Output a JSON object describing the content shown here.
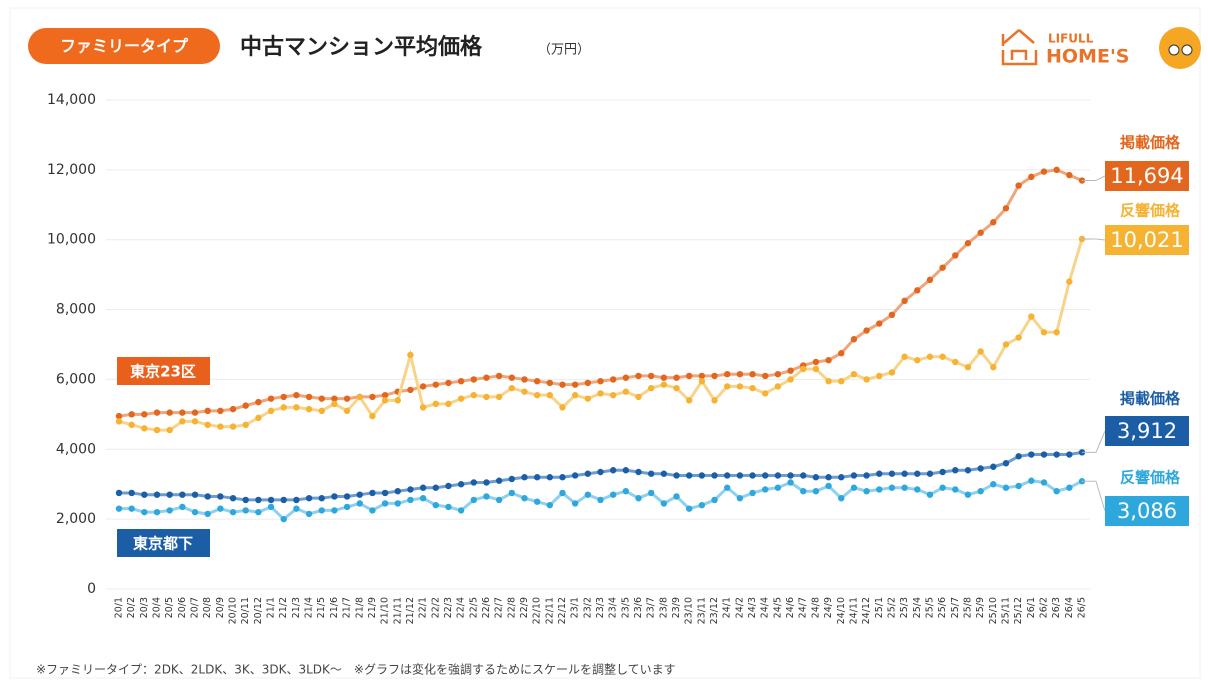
{
  "badge": "ファミリータイプ",
  "logo": [
    "LIFULL",
    "HOME'S"
  ],
  "footnote": "※ファミリータイプ：2DK、2LDK、3K、3DK、3LDK～　※グラフは変化を強調するためにスケールを調整しています",
  "chart_data": {
    "type": "line",
    "title": "中古マンション平均価格",
    "unit": "（万円）",
    "categories": [
      "20/1",
      "20/2",
      "20/3",
      "20/4",
      "20/5",
      "20/6",
      "20/7",
      "20/8",
      "20/9",
      "20/10",
      "20/11",
      "20/12",
      "21/1",
      "21/2",
      "21/3",
      "21/4",
      "21/5",
      "21/6",
      "21/7",
      "21/8",
      "21/9",
      "21/10",
      "21/11",
      "21/12",
      "22/1",
      "22/2",
      "22/3",
      "22/4",
      "22/5",
      "22/6",
      "22/7",
      "22/8",
      "22/9",
      "22/10",
      "22/11",
      "22/12",
      "23/1",
      "23/2",
      "23/3",
      "23/4",
      "23/5",
      "23/6",
      "23/7",
      "23/8",
      "23/9",
      "23/10",
      "23/11",
      "23/12",
      "24/1",
      "24/2",
      "24/3",
      "24/4",
      "24/5",
      "24/6",
      "24/7",
      "24/8",
      "24/9",
      "24/10",
      "24/11",
      "24/12",
      "25/1",
      "25/2",
      "25/3",
      "25/4",
      "25/5",
      "25/6",
      "25/7",
      "25/8",
      "25/9",
      "25/10",
      "25/11",
      "25/12",
      "26/1",
      "26/2",
      "26/3",
      "26/4",
      "26/5"
    ],
    "group_labels": [
      "東京23区",
      "東京都下"
    ],
    "series": [
      {
        "name": "掲載価格",
        "color": "#e2661e",
        "line_color": "#f0a57a",
        "values": [
          4950,
          5000,
          5000,
          5050,
          5050,
          5050,
          5050,
          5100,
          5100,
          5150,
          5250,
          5350,
          5450,
          5500,
          5550,
          5500,
          5450,
          5450,
          5450,
          5500,
          5500,
          5550,
          5650,
          5700,
          5800,
          5850,
          5900,
          5950,
          6000,
          6050,
          6100,
          6050,
          6000,
          5950,
          5900,
          5850,
          5850,
          5900,
          5950,
          6000,
          6050,
          6100,
          6100,
          6050,
          6050,
          6100,
          6100,
          6100,
          6150,
          6150,
          6150,
          6100,
          6150,
          6250,
          6400,
          6500,
          6550,
          6750,
          7150,
          7400,
          7600,
          7850,
          8250,
          8550,
          8850,
          9200,
          9550,
          9900,
          10200,
          10500,
          10900,
          11550,
          11800,
          11950,
          12000,
          11850,
          11694
        ],
        "value_labels": [
          null,
          null,
          null,
          null,
          null,
          null,
          null,
          null,
          null,
          null,
          null,
          null,
          null,
          null,
          null,
          null,
          null,
          null,
          null,
          null,
          null,
          null,
          null,
          null,
          null,
          null,
          null,
          null,
          null,
          null,
          null,
          null,
          null,
          null,
          null,
          null,
          null,
          null,
          null,
          null,
          null,
          null,
          null,
          null,
          null,
          null,
          null,
          null,
          null,
          null,
          null,
          null,
          null,
          null,
          null,
          null,
          null,
          null,
          null,
          null,
          null,
          null,
          null,
          null,
          null,
          null,
          null,
          null,
          null,
          null,
          null,
          null,
          null,
          null,
          null,
          null,
          "11,694"
        ]
      },
      {
        "name": "反響価格",
        "color": "#f5b233",
        "line_color": "#f8d38a",
        "values": [
          4800,
          4700,
          4600,
          4550,
          4550,
          4800,
          4800,
          4700,
          4650,
          4650,
          4700,
          4900,
          5100,
          5200,
          5200,
          5150,
          5100,
          5300,
          5100,
          5500,
          4950,
          5400,
          5400,
          6700,
          5200,
          5300,
          5300,
          5450,
          5550,
          5500,
          5500,
          5750,
          5650,
          5550,
          5550,
          5200,
          5550,
          5450,
          5600,
          5550,
          5650,
          5500,
          5750,
          5850,
          5750,
          5400,
          5950,
          5400,
          5800,
          5800,
          5750,
          5600,
          5800,
          6000,
          6300,
          6300,
          5950,
          5950,
          6150,
          6000,
          6100,
          6200,
          6650,
          6550,
          6650,
          6650,
          6500,
          6350,
          6800,
          6350,
          7000,
          7200,
          7800,
          7350,
          7350,
          8800,
          10021
        ],
        "value_labels": [
          null,
          null,
          null,
          null,
          null,
          null,
          null,
          null,
          null,
          null,
          null,
          null,
          null,
          null,
          null,
          null,
          null,
          null,
          null,
          null,
          null,
          null,
          null,
          null,
          null,
          null,
          null,
          null,
          null,
          null,
          null,
          null,
          null,
          null,
          null,
          null,
          null,
          null,
          null,
          null,
          null,
          null,
          null,
          null,
          null,
          null,
          null,
          null,
          null,
          null,
          null,
          null,
          null,
          null,
          null,
          null,
          null,
          null,
          null,
          null,
          null,
          null,
          null,
          null,
          null,
          null,
          null,
          null,
          null,
          null,
          null,
          null,
          null,
          null,
          null,
          null,
          "10,021"
        ]
      },
      {
        "name": "掲載価格",
        "color": "#1c5ea6",
        "line_color": "#6f9ccf",
        "values": [
          2750,
          2750,
          2700,
          2700,
          2700,
          2700,
          2700,
          2650,
          2650,
          2600,
          2550,
          2550,
          2550,
          2550,
          2550,
          2600,
          2600,
          2650,
          2650,
          2700,
          2750,
          2750,
          2800,
          2850,
          2900,
          2900,
          2950,
          3000,
          3050,
          3050,
          3100,
          3150,
          3200,
          3200,
          3200,
          3200,
          3250,
          3300,
          3350,
          3400,
          3400,
          3350,
          3300,
          3300,
          3250,
          3250,
          3250,
          3250,
          3250,
          3250,
          3250,
          3250,
          3250,
          3250,
          3250,
          3200,
          3200,
          3200,
          3250,
          3250,
          3300,
          3300,
          3300,
          3300,
          3300,
          3350,
          3400,
          3400,
          3450,
          3500,
          3600,
          3800,
          3850,
          3850,
          3850,
          3850,
          3912
        ],
        "value_labels": [
          null,
          null,
          null,
          null,
          null,
          null,
          null,
          null,
          null,
          null,
          null,
          null,
          null,
          null,
          null,
          null,
          null,
          null,
          null,
          null,
          null,
          null,
          null,
          null,
          null,
          null,
          null,
          null,
          null,
          null,
          null,
          null,
          null,
          null,
          null,
          null,
          null,
          null,
          null,
          null,
          null,
          null,
          null,
          null,
          null,
          null,
          null,
          null,
          null,
          null,
          null,
          null,
          null,
          null,
          null,
          null,
          null,
          null,
          null,
          null,
          null,
          null,
          null,
          null,
          null,
          null,
          null,
          null,
          null,
          null,
          null,
          null,
          null,
          null,
          null,
          null,
          "3,912"
        ]
      },
      {
        "name": "反響価格",
        "color": "#2ea8dc",
        "line_color": "#8fd0ee",
        "values": [
          2300,
          2300,
          2200,
          2200,
          2250,
          2350,
          2200,
          2150,
          2300,
          2200,
          2250,
          2200,
          2350,
          2000,
          2300,
          2150,
          2250,
          2250,
          2350,
          2450,
          2250,
          2450,
          2450,
          2550,
          2600,
          2400,
          2350,
          2250,
          2550,
          2650,
          2550,
          2750,
          2600,
          2500,
          2400,
          2750,
          2450,
          2700,
          2550,
          2700,
          2800,
          2600,
          2750,
          2450,
          2650,
          2300,
          2400,
          2550,
          2900,
          2600,
          2750,
          2850,
          2900,
          3050,
          2800,
          2800,
          2950,
          2600,
          2900,
          2800,
          2850,
          2900,
          2900,
          2850,
          2700,
          2900,
          2850,
          2700,
          2800,
          3000,
          2900,
          2950,
          3100,
          3050,
          2800,
          2900,
          3086
        ],
        "value_labels": [
          null,
          null,
          null,
          null,
          null,
          null,
          null,
          null,
          null,
          null,
          null,
          null,
          null,
          null,
          null,
          null,
          null,
          null,
          null,
          null,
          null,
          null,
          null,
          null,
          null,
          null,
          null,
          null,
          null,
          null,
          null,
          null,
          null,
          null,
          null,
          null,
          null,
          null,
          null,
          null,
          null,
          null,
          null,
          null,
          null,
          null,
          null,
          null,
          null,
          null,
          null,
          null,
          null,
          null,
          null,
          null,
          null,
          null,
          null,
          null,
          null,
          null,
          null,
          null,
          null,
          null,
          null,
          null,
          null,
          null,
          null,
          null,
          null,
          null,
          null,
          null,
          "3,086"
        ]
      }
    ],
    "ylim": [
      0,
      14000
    ],
    "yticks": [
      0,
      {
        "value": 2000,
        "label": "2,000"
      },
      {
        "value": 4000,
        "label": "4,000"
      },
      {
        "value": 6000,
        "label": "6,000"
      },
      {
        "value": 8000,
        "label": "8,000"
      },
      {
        "value": 10000,
        "label": "10,000"
      },
      {
        "value": 12000,
        "label": "12,000"
      },
      {
        "value": 14000,
        "label": "14,000"
      }
    ],
    "grid": true
  }
}
